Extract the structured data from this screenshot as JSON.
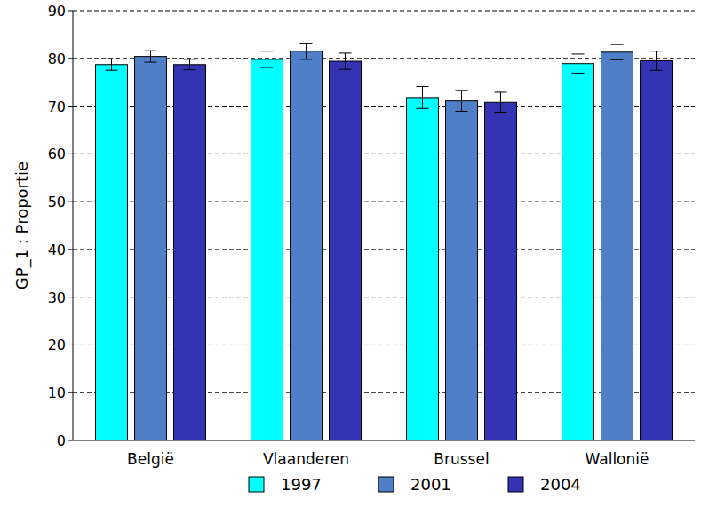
{
  "chart_data": {
    "type": "bar",
    "y_label": "GP_1 :  Proportie",
    "categories": [
      "België",
      "Vlaanderen",
      "Brussel",
      "Wallonië"
    ],
    "series": [
      {
        "name": "1997",
        "color": "#00ffff",
        "values": [
          78.7,
          79.8,
          71.8,
          78.9
        ],
        "errors": [
          1.2,
          1.7,
          2.3,
          2.0
        ]
      },
      {
        "name": "2001",
        "color": "#4f7fc6",
        "values": [
          80.4,
          81.5,
          71.1,
          81.3
        ],
        "errors": [
          1.2,
          1.7,
          2.2,
          1.6
        ]
      },
      {
        "name": "2004",
        "color": "#3333b4",
        "values": [
          78.7,
          79.4,
          70.8,
          79.5
        ],
        "errors": [
          1.1,
          1.7,
          2.1,
          2.0
        ]
      }
    ],
    "ylim": [
      0,
      90
    ],
    "yticks": [
      0,
      10,
      20,
      30,
      40,
      50,
      60,
      70,
      80,
      90
    ],
    "grid": true,
    "legend": "bottom"
  }
}
